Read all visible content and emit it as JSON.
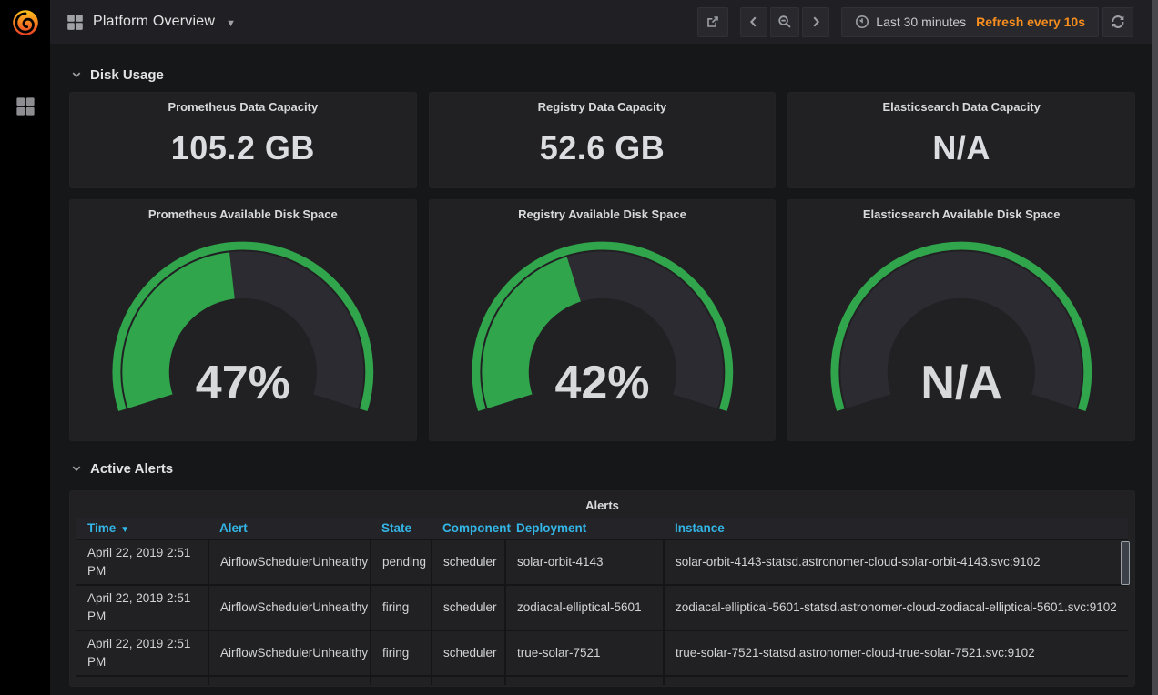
{
  "colors": {
    "accent_green": "#30a54b",
    "header_blue": "#33b5e5",
    "refresh_orange": "#f78e1e",
    "panel_bg": "#212124",
    "page_bg": "#161719"
  },
  "nav": {
    "title": "Platform Overview",
    "time_range": "Last 30 minutes",
    "refresh_interval": "Refresh every 10s",
    "icons": [
      "share-icon",
      "chevron-left-icon",
      "zoom-out-icon",
      "chevron-right-icon",
      "clock-icon",
      "refresh-icon"
    ]
  },
  "sidebar": {
    "icons": [
      "grafana-logo",
      "dashboards-grid-icon"
    ]
  },
  "sections": {
    "disk_usage": "Disk Usage",
    "active_alerts": "Active Alerts"
  },
  "stats": [
    {
      "title": "Prometheus Data Capacity",
      "value": "105.2 GB"
    },
    {
      "title": "Registry Data Capacity",
      "value": "52.6 GB"
    },
    {
      "title": "Elasticsearch Data Capacity",
      "value": "N/A"
    }
  ],
  "gauges": [
    {
      "title": "Prometheus Available Disk Space",
      "value": "47%",
      "percent": 47
    },
    {
      "title": "Registry Available Disk Space",
      "value": "42%",
      "percent": 42
    },
    {
      "title": "Elasticsearch Available Disk Space",
      "value": "N/A",
      "percent": null
    }
  ],
  "alerts": {
    "panel_title": "Alerts",
    "columns": [
      {
        "label": "Time",
        "sorted": "desc"
      },
      {
        "label": "Alert"
      },
      {
        "label": "State"
      },
      {
        "label": "Component"
      },
      {
        "label": "Deployment"
      },
      {
        "label": "Instance"
      }
    ],
    "rows": [
      {
        "time": "April 22, 2019 2:51 PM",
        "alert": "AirflowSchedulerUnhealthy",
        "state": "pending",
        "component": "scheduler",
        "deployment": "solar-orbit-4143",
        "instance": "solar-orbit-4143-statsd.astronomer-cloud-solar-orbit-4143.svc:9102"
      },
      {
        "time": "April 22, 2019 2:51 PM",
        "alert": "AirflowSchedulerUnhealthy",
        "state": "firing",
        "component": "scheduler",
        "deployment": "zodiacal-elliptical-5601",
        "instance": "zodiacal-elliptical-5601-statsd.astronomer-cloud-zodiacal-elliptical-5601.svc:9102"
      },
      {
        "time": "April 22, 2019 2:51 PM",
        "alert": "AirflowSchedulerUnhealthy",
        "state": "firing",
        "component": "scheduler",
        "deployment": "true-solar-7521",
        "instance": "true-solar-7521-statsd.astronomer-cloud-true-solar-7521.svc:9102"
      }
    ]
  }
}
